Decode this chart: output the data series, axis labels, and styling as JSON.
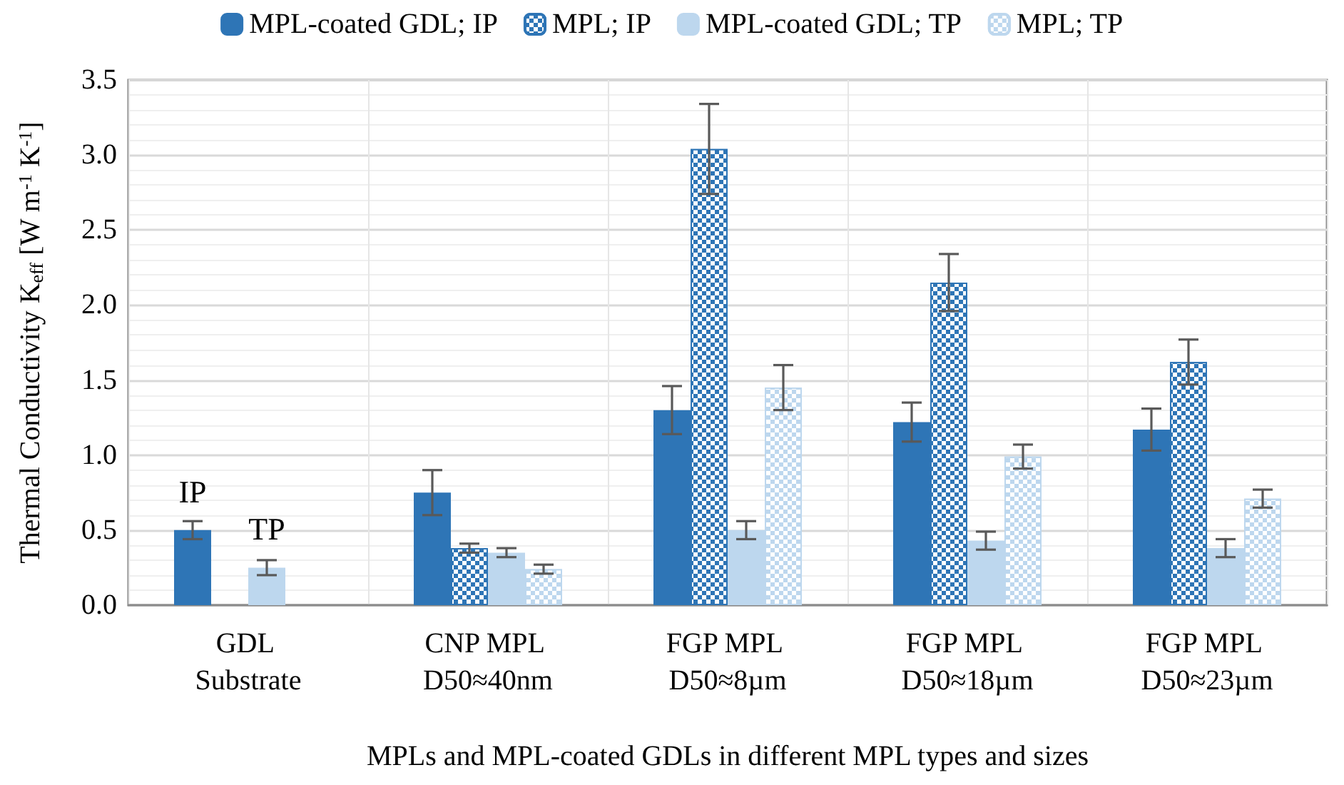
{
  "chart_data": {
    "type": "bar",
    "xlabel": "MPLs and MPL-coated GDLs in different MPL types and sizes",
    "ylabel": "Thermal Conductivity K$_{eff}$ [W m$^{-1}$ K$^{-1}$]",
    "categories": [
      "GDL Substrate",
      "CNP MPL D50≈40nm",
      "FGP MPL D50≈8µm",
      "FGP MPL D50≈18µm",
      "FGP MPL D50≈23µm"
    ],
    "series": [
      {
        "name": "MPL-coated GDL; IP",
        "color": "#2e75b6",
        "values": [
          0.5,
          0.75,
          1.3,
          1.22,
          1.17
        ],
        "errors": [
          0.06,
          0.15,
          0.16,
          0.13,
          0.14
        ],
        "value_labels": [
          "IP",
          null,
          null,
          null,
          null
        ]
      },
      {
        "name": "MPL; IP",
        "color": "#2e75b6",
        "values": [
          null,
          0.38,
          3.04,
          2.15,
          1.62
        ],
        "errors": [
          null,
          0.03,
          0.3,
          0.19,
          0.15
        ]
      },
      {
        "name": "MPL-coated GDL; TP",
        "color": "#bdd7ee",
        "values": [
          0.25,
          0.35,
          0.5,
          0.43,
          0.38
        ],
        "errors": [
          0.05,
          0.03,
          0.06,
          0.06,
          0.06
        ],
        "value_labels": [
          "TP",
          null,
          null,
          null,
          null
        ]
      },
      {
        "name": "MPL; TP",
        "color": "#bdd7ee",
        "values": [
          null,
          0.24,
          1.45,
          0.99,
          0.71
        ],
        "errors": [
          null,
          0.03,
          0.15,
          0.08,
          0.06
        ]
      }
    ],
    "ylim": [
      0,
      3.5
    ],
    "yticks": [
      {
        "value": 0,
        "label": "0.0"
      },
      {
        "value": 0.5,
        "label": "0.5"
      },
      {
        "value": 1,
        "label": "1.0"
      },
      {
        "value": 1.5,
        "label": "1.5"
      },
      {
        "value": 2,
        "label": "2.0"
      },
      {
        "value": 2.5,
        "label": "2.5"
      },
      {
        "value": 3,
        "label": "3.0"
      },
      {
        "value": 3.5,
        "label": "3.5"
      }
    ],
    "grid": true,
    "legend": "top"
  }
}
